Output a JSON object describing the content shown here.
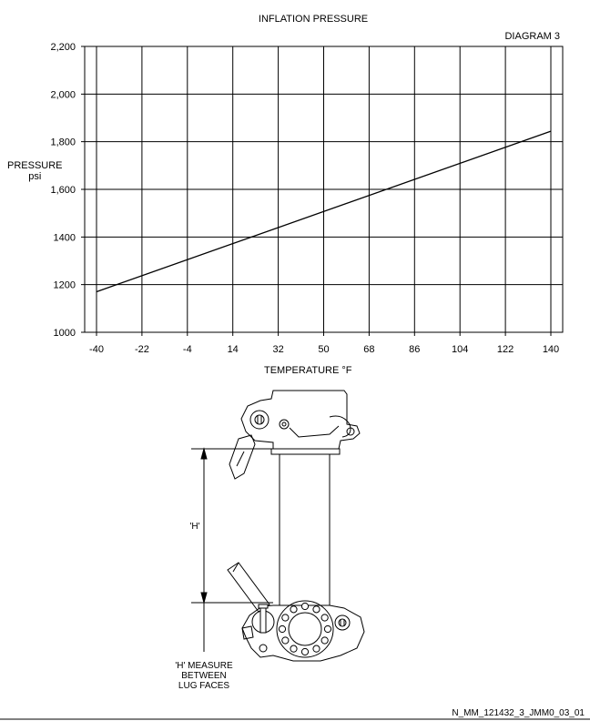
{
  "chart_data": {
    "type": "line",
    "title": "INFLATION PRESSURE",
    "xlabel": "TEMPERATURE °F",
    "ylabel": "PRESSURE",
    "ylabel_unit": "psi",
    "x_ticks": [
      "-40",
      "-22",
      "-4",
      "14",
      "32",
      "50",
      "68",
      "86",
      "104",
      "122",
      "140"
    ],
    "y_ticks": [
      "1000",
      "1200",
      "1400",
      "1,600",
      "1,800",
      "2,000",
      "2,200"
    ],
    "xlim": [
      -40,
      140
    ],
    "ylim": [
      1000,
      2200
    ],
    "grid": true,
    "series": [
      {
        "x": [
          -40,
          140
        ],
        "y": [
          1170,
          1844
        ]
      }
    ]
  },
  "diagram_label": "DIAGRAM 3",
  "figure": {
    "h_label": "'H'",
    "note_lines": [
      "'H' MEASURE",
      "BETWEEN",
      "LUG FACES"
    ]
  },
  "reference": "N_MM_121432_3_JMM0_03_01"
}
